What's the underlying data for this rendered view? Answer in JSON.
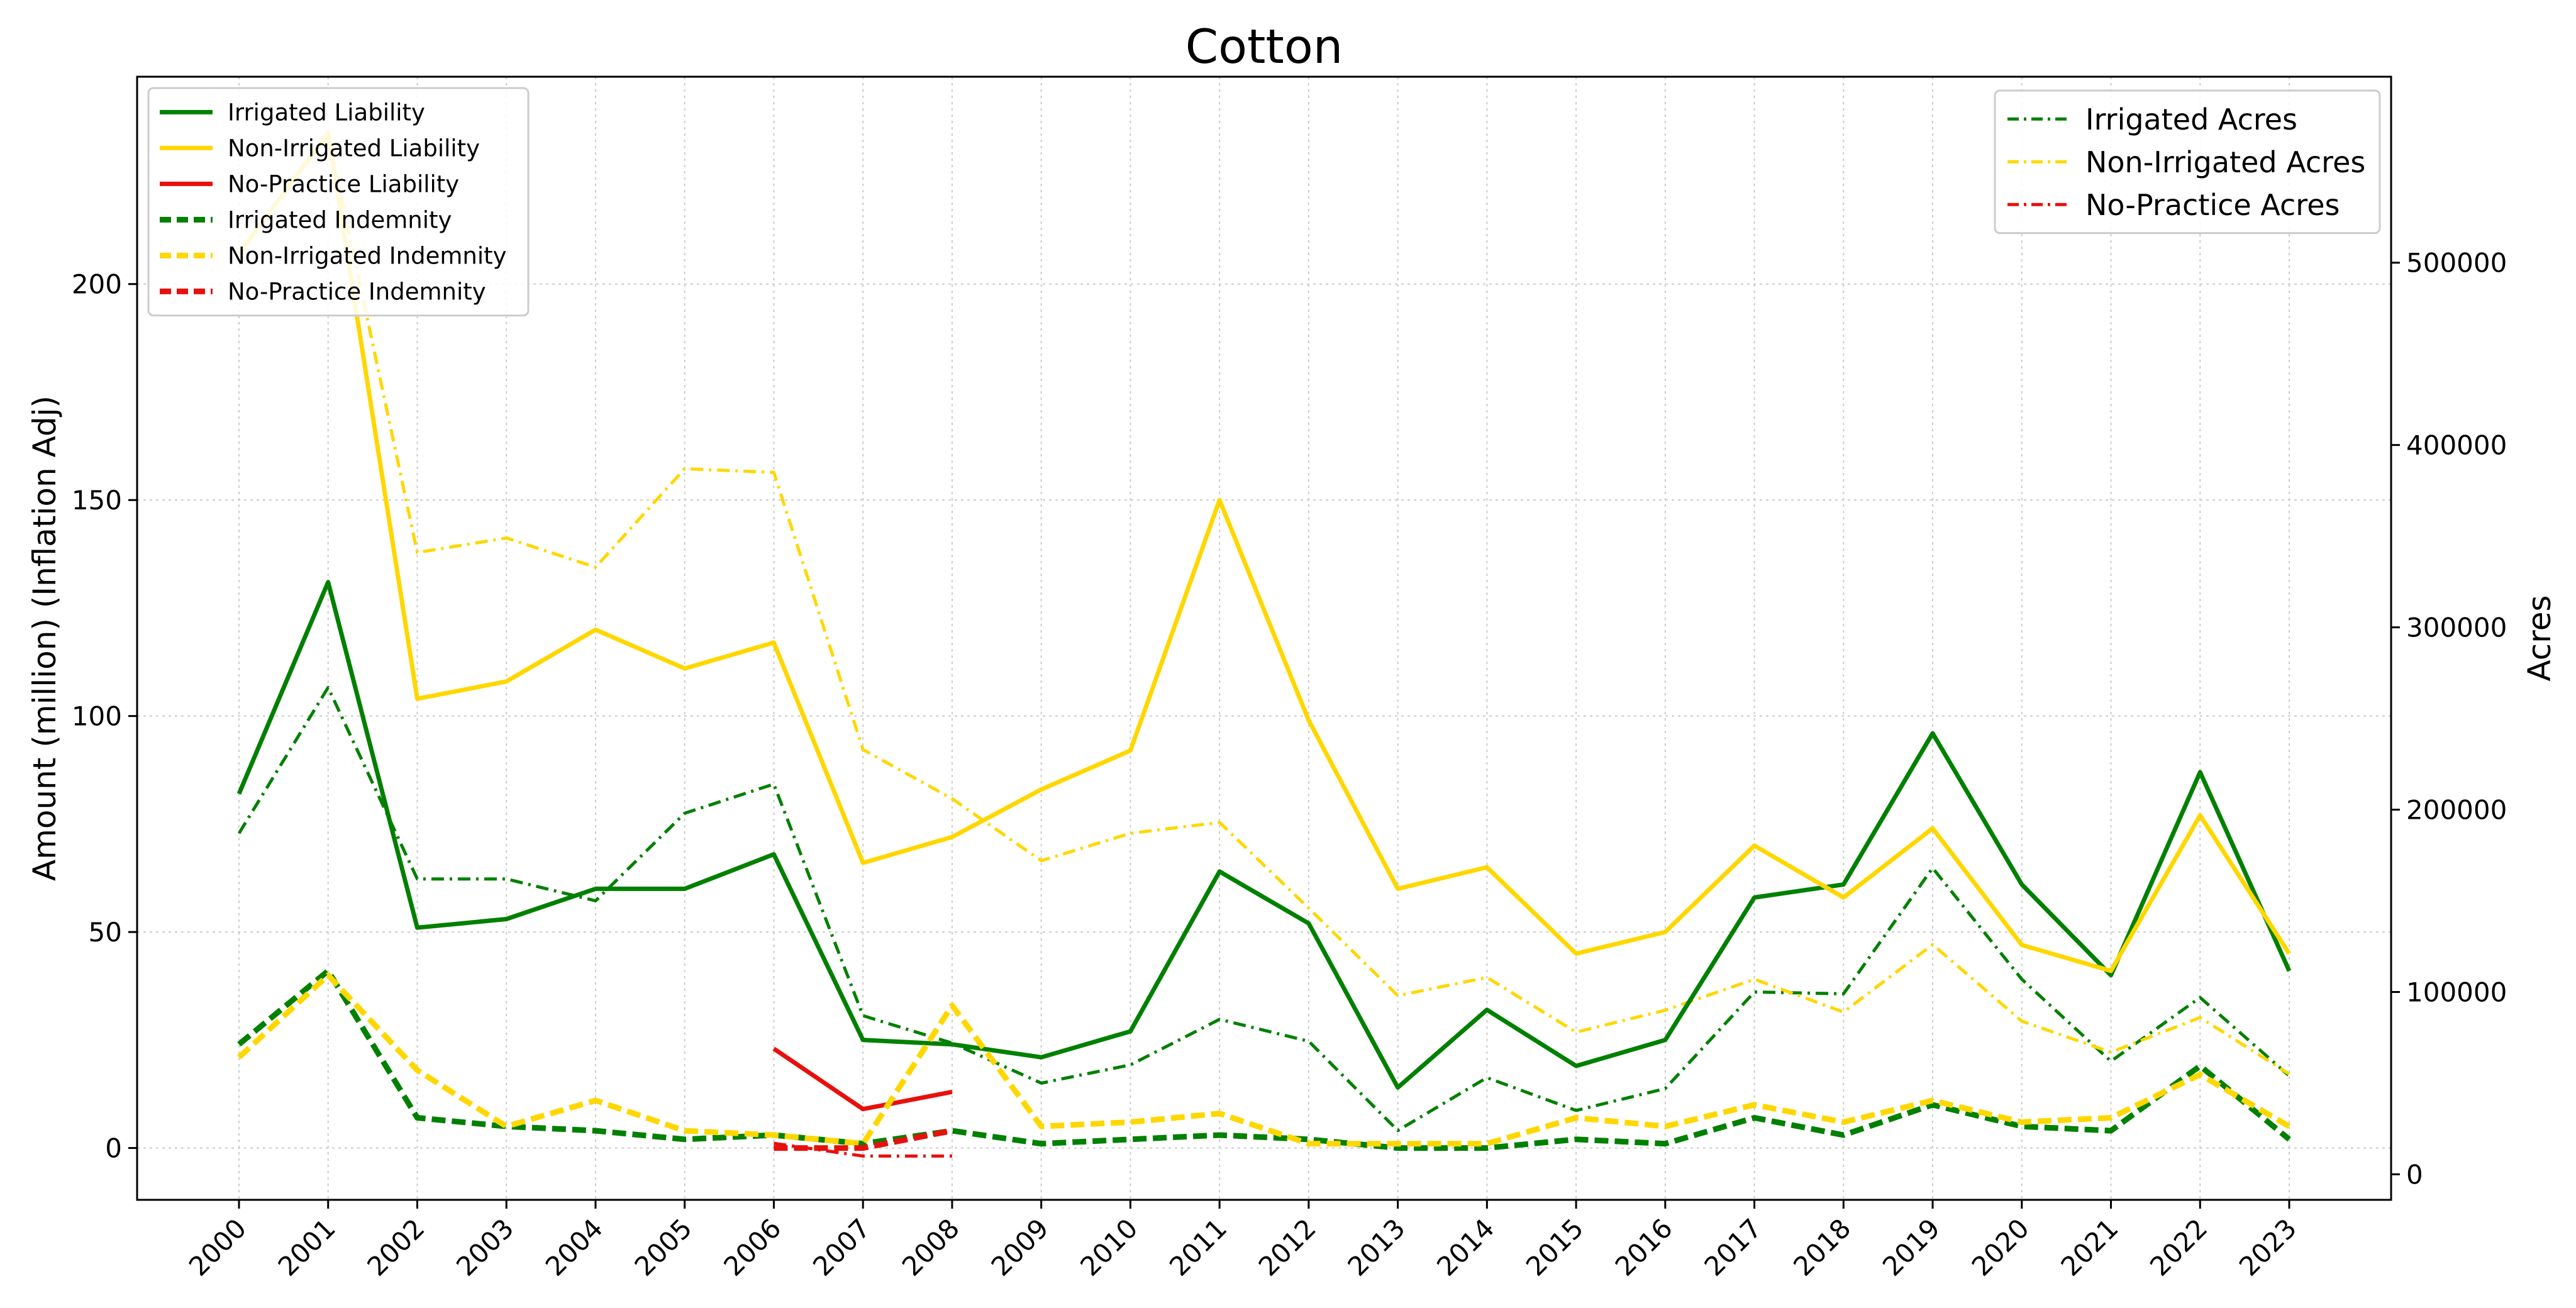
{
  "chart_data": {
    "type": "line",
    "title": "Cotton",
    "xlabel": "",
    "ylabel_left": "Amount (million) (Inflation Adj)",
    "ylabel_right": "Acres",
    "x": [
      "2000",
      "2001",
      "2002",
      "2003",
      "2004",
      "2005",
      "2006",
      "2007",
      "2008",
      "2009",
      "2010",
      "2011",
      "2012",
      "2013",
      "2014",
      "2015",
      "2016",
      "2017",
      "2018",
      "2019",
      "2020",
      "2021",
      "2022",
      "2023"
    ],
    "y_left_ticks": [
      "0",
      "50",
      "100",
      "150",
      "200"
    ],
    "y_right_ticks": [
      "0",
      "100000",
      "200000",
      "300000",
      "400000",
      "500000"
    ],
    "ylim_left": [
      -12,
      248
    ],
    "ylim_right": [
      -14000,
      602000
    ],
    "grid": true,
    "colors": {
      "irrigated": "#008000",
      "non_irrigated": "#ffd700",
      "no_practice": "#e8100c"
    },
    "legend_left_position": "top-left",
    "legend_right_position": "top-right",
    "series": [
      {
        "name": "Irrigated Liability",
        "axis": "left",
        "style": "solid",
        "color": "#008000",
        "values": [
          82,
          131,
          51,
          53,
          60,
          60,
          68,
          25,
          24,
          21,
          27,
          64,
          52,
          14,
          32,
          19,
          25,
          58,
          61,
          96,
          61,
          40,
          87,
          41
        ]
      },
      {
        "name": "Non-Irrigated Liability",
        "axis": "left",
        "style": "solid",
        "color": "#ffd700",
        "values": [
          207,
          235,
          104,
          108,
          120,
          111,
          117,
          66,
          72,
          83,
          92,
          150,
          99,
          60,
          65,
          45,
          50,
          70,
          58,
          74,
          47,
          41,
          77,
          45
        ]
      },
      {
        "name": "No-Practice Liability",
        "axis": "left",
        "style": "solid",
        "color": "#e8100c",
        "values": [
          null,
          null,
          null,
          null,
          null,
          null,
          23,
          9,
          13,
          null,
          null,
          null,
          null,
          null,
          null,
          null,
          null,
          null,
          null,
          null,
          null,
          null,
          null,
          null
        ]
      },
      {
        "name": "Irrigated Indemnity",
        "axis": "left",
        "style": "dashed",
        "color": "#008000",
        "values": [
          24,
          41,
          7,
          5,
          4,
          2,
          3,
          1,
          4,
          1,
          2,
          3,
          2,
          0,
          0,
          2,
          1,
          7,
          3,
          10,
          5,
          4,
          19,
          2
        ]
      },
      {
        "name": "Non-Irrigated Indemnity",
        "axis": "left",
        "style": "dashed",
        "color": "#ffd700",
        "values": [
          21,
          40,
          18,
          5,
          11,
          4,
          3,
          1,
          33,
          5,
          6,
          8,
          1,
          1,
          1,
          7,
          5,
          10,
          6,
          11,
          6,
          7,
          17,
          5
        ]
      },
      {
        "name": "No-Practice Indemnity",
        "axis": "left",
        "style": "dashed",
        "color": "#e8100c",
        "values": [
          null,
          null,
          null,
          null,
          null,
          null,
          0,
          0,
          4,
          null,
          null,
          null,
          null,
          null,
          null,
          null,
          null,
          null,
          null,
          null,
          null,
          null,
          null,
          null
        ]
      },
      {
        "name": "Irrigated Acres",
        "axis": "right",
        "style": "dashdot",
        "color": "#008000",
        "values": [
          187000,
          267000,
          162000,
          162000,
          150000,
          198000,
          214000,
          87000,
          72000,
          50000,
          60000,
          85000,
          73000,
          24000,
          53000,
          35000,
          47000,
          100000,
          99000,
          168000,
          107000,
          62000,
          97000,
          54000
        ]
      },
      {
        "name": "Non-Irrigated Acres",
        "axis": "right",
        "style": "dashdot",
        "color": "#ffd700",
        "values": [
          505000,
          570000,
          341000,
          349000,
          333000,
          387000,
          385000,
          233000,
          206000,
          172000,
          187000,
          193000,
          146000,
          98000,
          108000,
          78000,
          90000,
          107000,
          89000,
          126000,
          84000,
          67000,
          86000,
          55000
        ]
      },
      {
        "name": "No-Practice Acres",
        "axis": "right",
        "style": "dashdot",
        "color": "#e8100c",
        "values": [
          null,
          null,
          null,
          null,
          null,
          null,
          17000,
          10000,
          10000,
          null,
          null,
          null,
          null,
          null,
          null,
          null,
          null,
          null,
          null,
          null,
          null,
          null,
          null,
          null
        ]
      }
    ]
  }
}
